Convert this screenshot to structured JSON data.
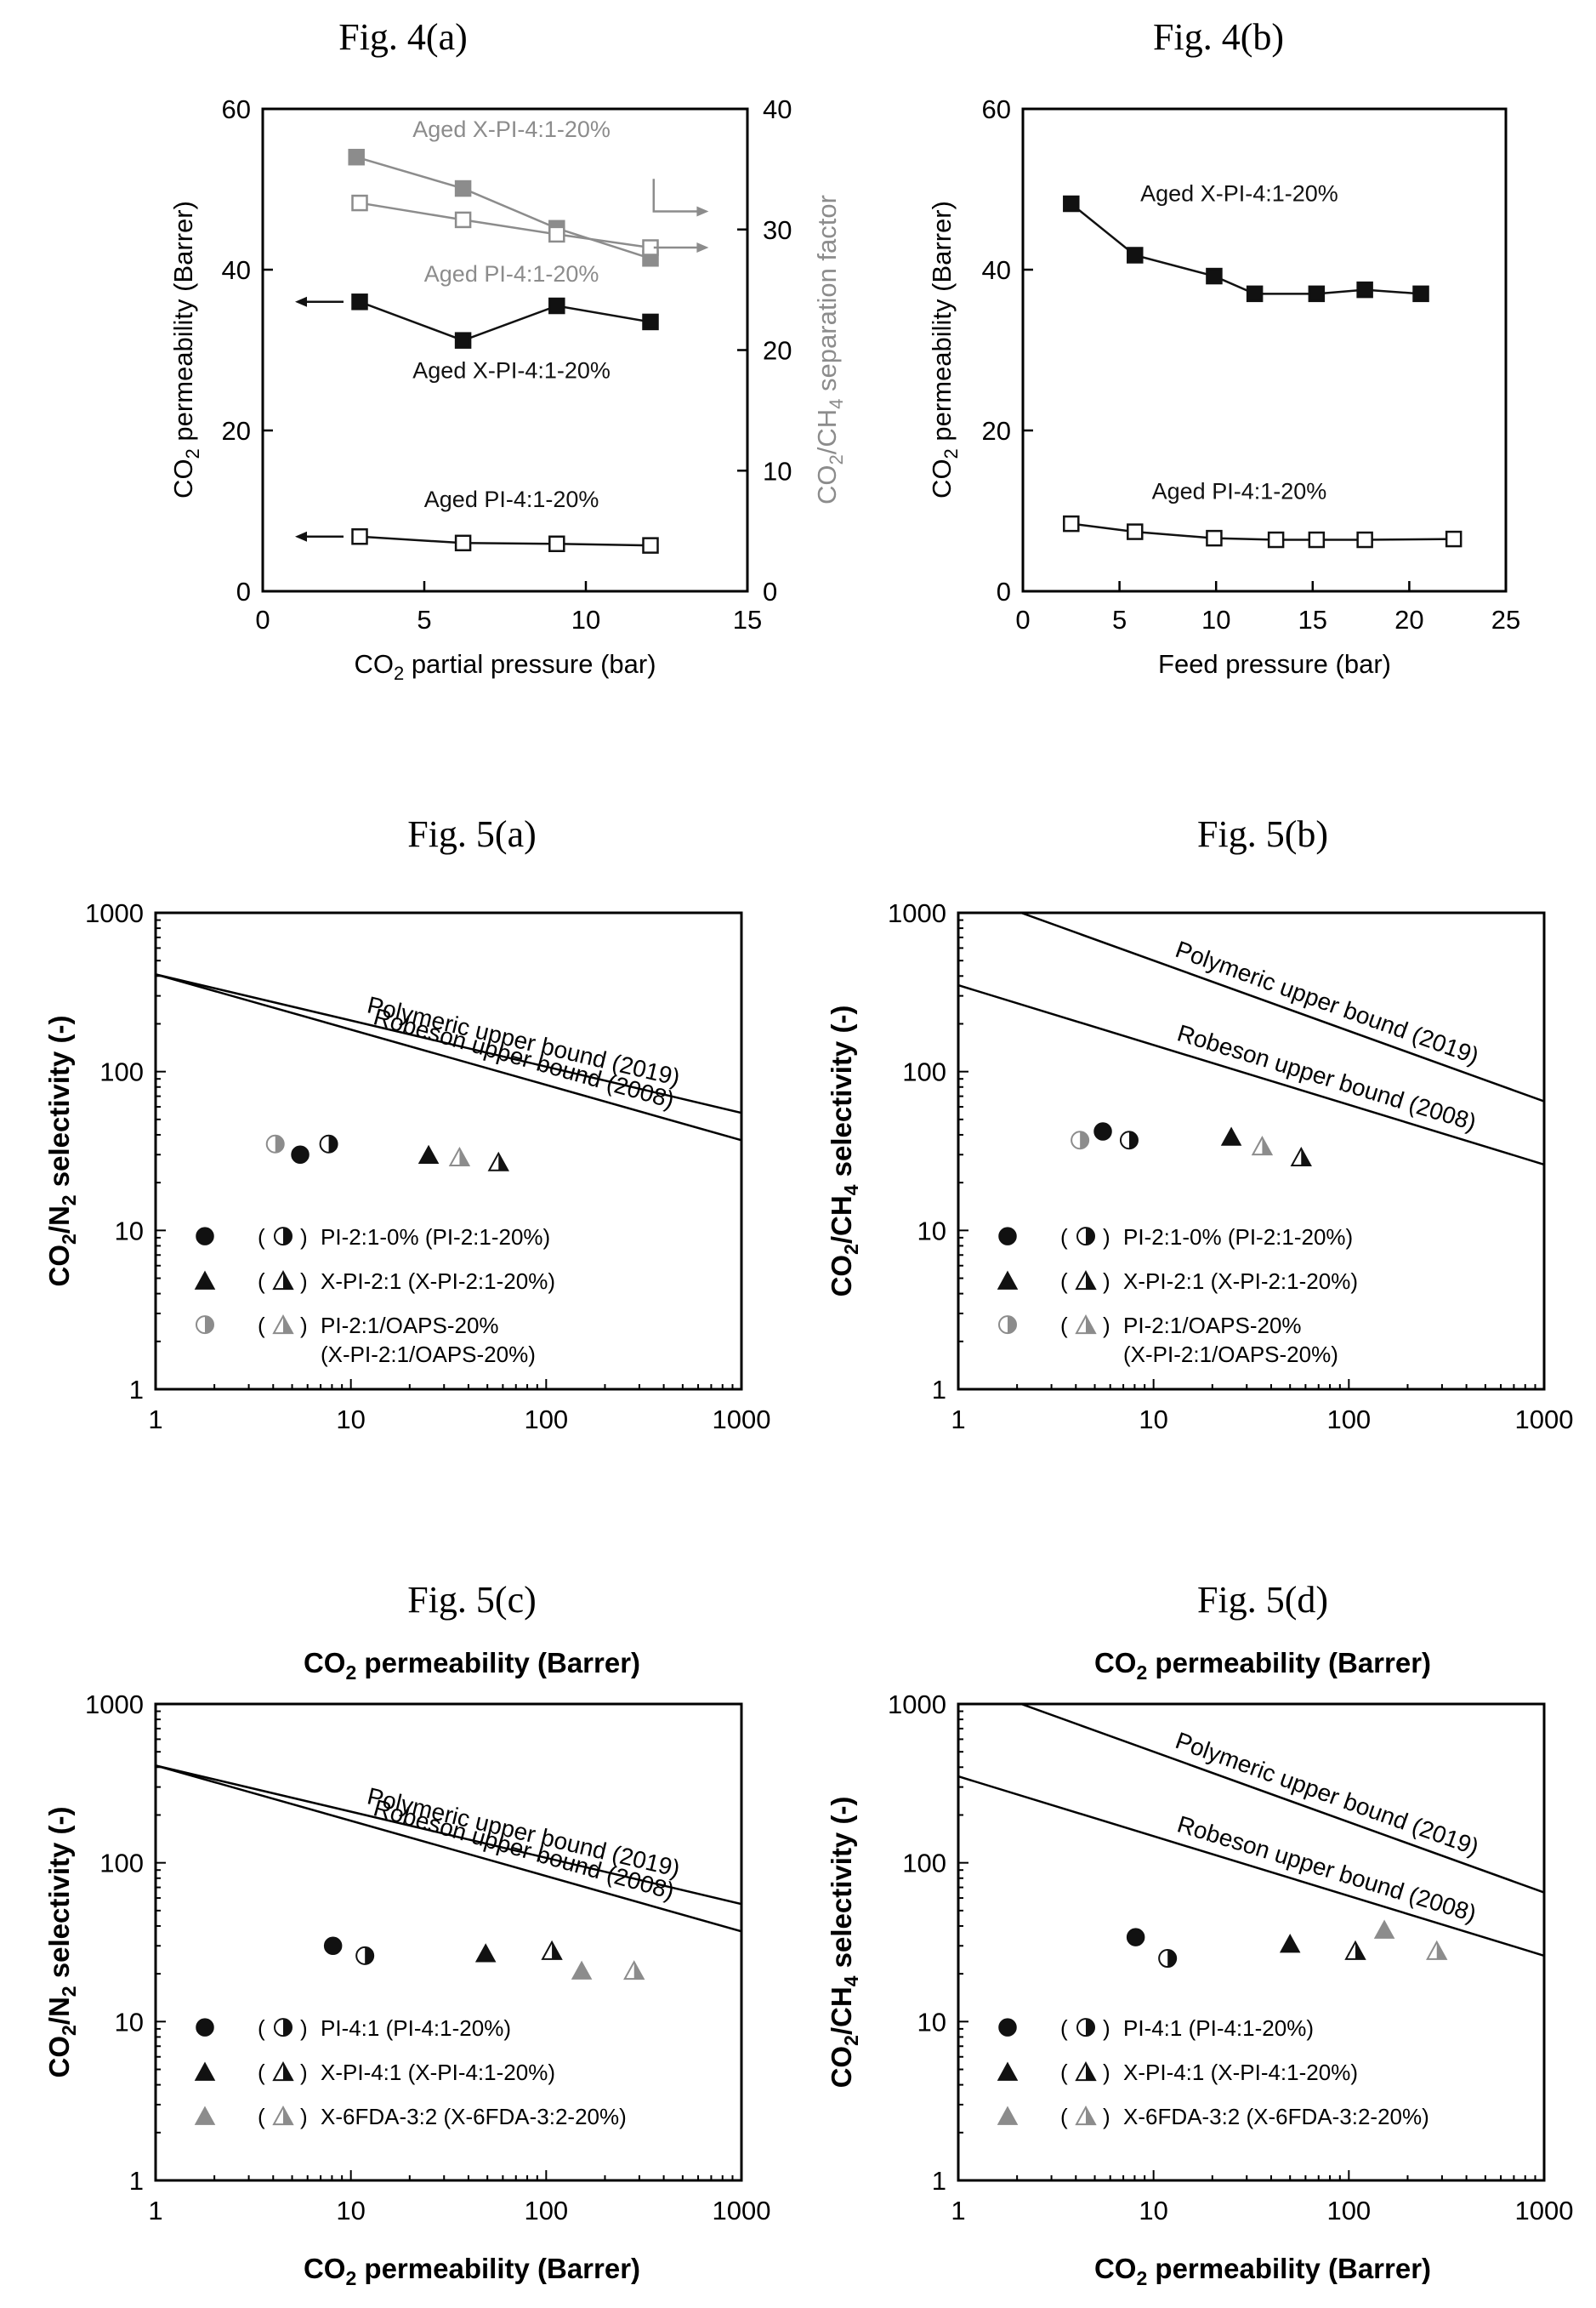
{
  "colors": {
    "black": "#111111",
    "gray": "#8c8c8c",
    "light_gray": "#c0c0c0"
  },
  "figures": [
    {
      "id": "fig4a",
      "caption": "Fig. 4(a)",
      "chart_data": {
        "type": "line",
        "xlabel": "CO2 partial pressure (bar)",
        "ylabel": "CO2 permeability (Barrer)",
        "y2label": "CO2/CH4 separation factor",
        "xlim": [
          0,
          15
        ],
        "ylim": [
          0,
          60
        ],
        "y2lim": [
          0,
          40
        ],
        "xticks": [
          0,
          5,
          10,
          15
        ],
        "yticks": [
          0,
          20,
          40,
          60
        ],
        "y2ticks": [
          0,
          10,
          20,
          30,
          40
        ],
        "series": [
          {
            "name": "Aged X-PI-4:1-20%",
            "axis": "left",
            "marker": "square-filled",
            "color": "black",
            "x": [
              3.0,
              6.2,
              9.1,
              12.0
            ],
            "y": [
              36.0,
              31.2,
              35.5,
              33.5
            ],
            "label_pos": [
              7.7,
              26.5
            ]
          },
          {
            "name": "Aged PI-4:1-20%",
            "axis": "left",
            "marker": "square-open",
            "color": "black",
            "x": [
              3.0,
              6.2,
              9.1,
              12.0
            ],
            "y": [
              6.8,
              6.0,
              5.9,
              5.7
            ],
            "label_pos": [
              7.7,
              10.5
            ]
          },
          {
            "name": "Aged X-PI-4:1-20%",
            "axis": "right",
            "marker": "square-filled",
            "color": "gray",
            "x": [
              2.9,
              6.2,
              9.1,
              12.0
            ],
            "y": [
              36.0,
              33.4,
              30.1,
              27.6
            ],
            "label_pos": [
              7.7,
              56.5
            ]
          },
          {
            "name": "Aged PI-4:1-20%",
            "axis": "right",
            "marker": "square-open",
            "color": "gray",
            "x": [
              3.0,
              6.2,
              9.1,
              12.0
            ],
            "y": [
              32.2,
              30.8,
              29.6,
              28.5
            ],
            "label_pos": [
              7.7,
              38.5
            ]
          }
        ]
      }
    },
    {
      "id": "fig4b",
      "caption": "Fig. 4(b)",
      "chart_data": {
        "type": "line",
        "xlabel": "Feed pressure (bar)",
        "ylabel": "CO2 permeability (Barrer)",
        "xlim": [
          0,
          25
        ],
        "ylim": [
          0,
          60
        ],
        "xticks": [
          0,
          5,
          10,
          15,
          20,
          25
        ],
        "yticks": [
          0,
          20,
          40,
          60
        ],
        "series": [
          {
            "name": "Aged X-PI-4:1-20%",
            "marker": "square-filled",
            "color": "black",
            "x": [
              2.5,
              5.8,
              9.9,
              12.0,
              15.2,
              17.7,
              20.6
            ],
            "y": [
              48.2,
              41.8,
              39.2,
              37.0,
              37.0,
              37.5,
              37.0
            ],
            "label_pos": [
              11.2,
              48.5
            ]
          },
          {
            "name": "Aged PI-4:1-20%",
            "marker": "square-open",
            "color": "black",
            "x": [
              2.5,
              5.8,
              9.9,
              13.1,
              15.2,
              17.7,
              22.3
            ],
            "y": [
              8.4,
              7.4,
              6.6,
              6.4,
              6.4,
              6.4,
              6.5
            ],
            "label_pos": [
              11.2,
              11.5
            ]
          }
        ]
      }
    },
    {
      "id": "fig5a",
      "caption": "Fig. 5(a)",
      "chart_data": {
        "type": "scatter",
        "xscale": "log",
        "yscale": "log",
        "xlabel": "",
        "ylabel": "CO2/N2 selectivity (-)",
        "xlim": [
          1,
          1000
        ],
        "ylim": [
          1,
          1000
        ],
        "xticks": [
          1,
          10,
          100,
          1000
        ],
        "yticks": [
          1,
          10,
          100,
          1000
        ],
        "bounds": [
          {
            "name": "Polymeric upper bound (2019)",
            "x": [
              1,
              1000
            ],
            "y": [
              410,
              55
            ]
          },
          {
            "name": "Robeson upper bound (2008)",
            "x": [
              1,
              1000
            ],
            "y": [
              410,
              37
            ]
          }
        ],
        "series": [
          {
            "name": "PI-2:1-0%",
            "marker": "circle",
            "fill": "full",
            "color": "black",
            "x": [
              5.5
            ],
            "y": [
              30
            ]
          },
          {
            "name": "PI-2:1-20%",
            "marker": "circle",
            "fill": "half",
            "color": "black",
            "x": [
              7.7
            ],
            "y": [
              35
            ]
          },
          {
            "name": "X-PI-2:1",
            "marker": "triangle",
            "fill": "full",
            "color": "black",
            "x": [
              25
            ],
            "y": [
              30
            ]
          },
          {
            "name": "X-PI-2:1-20%",
            "marker": "triangle",
            "fill": "half",
            "color": "black",
            "x": [
              57
            ],
            "y": [
              27
            ]
          },
          {
            "name": "PI-2:1/OAPS-20%",
            "marker": "circle",
            "fill": "half",
            "color": "gray",
            "x": [
              4.1
            ],
            "y": [
              35
            ]
          },
          {
            "name": "X-PI-2:1/OAPS-20%",
            "marker": "triangle",
            "fill": "half",
            "color": "gray",
            "x": [
              36
            ],
            "y": [
              29
            ]
          }
        ],
        "legend": [
          {
            "text": "PI-2:1-0% (PI-2:1-20%)",
            "marker": "circle",
            "color": "black"
          },
          {
            "text": "X-PI-2:1 (X-PI-2:1-20%)",
            "marker": "triangle",
            "color": "black"
          },
          {
            "text": "PI-2:1/OAPS-20%",
            "text2": "(X-PI-2:1/OAPS-20%)",
            "marker": "circle",
            "color": "gray",
            "alt_marker": "triangle"
          }
        ]
      }
    },
    {
      "id": "fig5b",
      "caption": "Fig. 5(b)",
      "chart_data": {
        "type": "scatter",
        "xscale": "log",
        "yscale": "log",
        "xlabel": "",
        "ylabel": "CO2/CH4 selectivity (-)",
        "xlim": [
          1,
          1000
        ],
        "ylim": [
          1,
          1000
        ],
        "xticks": [
          1,
          10,
          100,
          1000
        ],
        "yticks": [
          1,
          10,
          100,
          1000
        ],
        "bounds": [
          {
            "name": "Polymeric upper bound (2019)",
            "x": [
              2.1,
              1000
            ],
            "y": [
              1000,
              65
            ]
          },
          {
            "name": "Robeson upper bound (2008)",
            "x": [
              1,
              1000
            ],
            "y": [
              350,
              26
            ]
          }
        ],
        "series": [
          {
            "name": "PI-2:1-0%",
            "marker": "circle",
            "fill": "full",
            "color": "black",
            "x": [
              5.5
            ],
            "y": [
              42
            ]
          },
          {
            "name": "PI-2:1-20%",
            "marker": "circle",
            "fill": "half",
            "color": "black",
            "x": [
              7.5
            ],
            "y": [
              37
            ]
          },
          {
            "name": "X-PI-2:1",
            "marker": "triangle",
            "fill": "full",
            "color": "black",
            "x": [
              25
            ],
            "y": [
              39
            ]
          },
          {
            "name": "X-PI-2:1-20%",
            "marker": "triangle",
            "fill": "half",
            "color": "black",
            "x": [
              57
            ],
            "y": [
              29
            ]
          },
          {
            "name": "PI-2:1/OAPS-20%",
            "marker": "circle",
            "fill": "half",
            "color": "gray",
            "x": [
              4.2
            ],
            "y": [
              37
            ]
          },
          {
            "name": "X-PI-2:1/OAPS-20%",
            "marker": "triangle",
            "fill": "half",
            "color": "gray",
            "x": [
              36
            ],
            "y": [
              34
            ]
          }
        ],
        "legend": [
          {
            "text": "PI-2:1-0% (PI-2:1-20%)",
            "marker": "circle",
            "color": "black"
          },
          {
            "text": "X-PI-2:1 (X-PI-2:1-20%)",
            "marker": "triangle",
            "color": "black"
          },
          {
            "text": "PI-2:1/OAPS-20%",
            "text2": "(X-PI-2:1/OAPS-20%)",
            "marker": "circle",
            "color": "gray",
            "alt_marker": "triangle"
          }
        ]
      }
    },
    {
      "id": "fig5c",
      "caption": "Fig. 5(c)",
      "top_label": "CO2 permeability (Barrer)",
      "chart_data": {
        "type": "scatter",
        "xscale": "log",
        "yscale": "log",
        "xlabel": "CO2 permeability (Barrer)",
        "ylabel": "CO2/N2 selectivity (-)",
        "xlim": [
          1,
          1000
        ],
        "ylim": [
          1,
          1000
        ],
        "xticks": [
          1,
          10,
          100,
          1000
        ],
        "yticks": [
          1,
          10,
          100,
          1000
        ],
        "bounds": [
          {
            "name": "Polymeric upper bound (2019)",
            "x": [
              1,
              1000
            ],
            "y": [
              410,
              55
            ]
          },
          {
            "name": "Robeson upper bound (2008)",
            "x": [
              1,
              1000
            ],
            "y": [
              410,
              37
            ]
          }
        ],
        "series": [
          {
            "name": "PI-4:1",
            "marker": "circle",
            "fill": "full",
            "color": "black",
            "x": [
              8.1
            ],
            "y": [
              30
            ]
          },
          {
            "name": "PI-4:1-20%",
            "marker": "circle",
            "fill": "half",
            "color": "black",
            "x": [
              11.8
            ],
            "y": [
              26
            ]
          },
          {
            "name": "X-PI-4:1",
            "marker": "triangle",
            "fill": "full",
            "color": "black",
            "x": [
              49
            ],
            "y": [
              27
            ]
          },
          {
            "name": "X-PI-4:1-20%",
            "marker": "triangle",
            "fill": "half",
            "color": "black",
            "x": [
              107
            ],
            "y": [
              28
            ]
          },
          {
            "name": "X-6FDA-3:2",
            "marker": "triangle",
            "fill": "full",
            "color": "gray",
            "x": [
              152
            ],
            "y": [
              21
            ]
          },
          {
            "name": "X-6FDA-3:2-20%",
            "marker": "triangle",
            "fill": "half",
            "color": "gray",
            "x": [
              282
            ],
            "y": [
              21
            ]
          }
        ],
        "legend": [
          {
            "text": "PI-4:1 (PI-4:1-20%)",
            "marker": "circle",
            "color": "black"
          },
          {
            "text": "X-PI-4:1 (X-PI-4:1-20%)",
            "marker": "triangle",
            "color": "black"
          },
          {
            "text": "X-6FDA-3:2 (X-6FDA-3:2-20%)",
            "marker": "triangle",
            "color": "gray"
          }
        ]
      }
    },
    {
      "id": "fig5d",
      "caption": "Fig. 5(d)",
      "top_label": "CO2 permeability (Barrer)",
      "chart_data": {
        "type": "scatter",
        "xscale": "log",
        "yscale": "log",
        "xlabel": "CO2 permeability (Barrer)",
        "ylabel": "CO2/CH4 selectivity (-)",
        "xlim": [
          1,
          1000
        ],
        "ylim": [
          1,
          1000
        ],
        "xticks": [
          1,
          10,
          100,
          1000
        ],
        "yticks": [
          1,
          10,
          100,
          1000
        ],
        "bounds": [
          {
            "name": "Polymeric upper bound (2019)",
            "x": [
              2.1,
              1000
            ],
            "y": [
              1000,
              65
            ]
          },
          {
            "name": "Robeson upper bound (2008)",
            "x": [
              1,
              1000
            ],
            "y": [
              350,
              26
            ]
          }
        ],
        "series": [
          {
            "name": "PI-4:1",
            "marker": "circle",
            "fill": "full",
            "color": "black",
            "x": [
              8.1
            ],
            "y": [
              34
            ]
          },
          {
            "name": "PI-4:1-20%",
            "marker": "circle",
            "fill": "half",
            "color": "black",
            "x": [
              11.8
            ],
            "y": [
              25
            ]
          },
          {
            "name": "X-PI-4:1",
            "marker": "triangle",
            "fill": "full",
            "color": "black",
            "x": [
              50
            ],
            "y": [
              31
            ]
          },
          {
            "name": "X-PI-4:1-20%",
            "marker": "triangle",
            "fill": "half",
            "color": "black",
            "x": [
              108
            ],
            "y": [
              28
            ]
          },
          {
            "name": "X-6FDA-3:2",
            "marker": "triangle",
            "fill": "full",
            "color": "gray",
            "x": [
              152
            ],
            "y": [
              38
            ]
          },
          {
            "name": "X-6FDA-3:2-20%",
            "marker": "triangle",
            "fill": "half",
            "color": "gray",
            "x": [
              282
            ],
            "y": [
              28
            ]
          }
        ],
        "legend": [
          {
            "text": "PI-4:1 (PI-4:1-20%)",
            "marker": "circle",
            "color": "black"
          },
          {
            "text": "X-PI-4:1 (X-PI-4:1-20%)",
            "marker": "triangle",
            "color": "black"
          },
          {
            "text": "X-6FDA-3:2 (X-6FDA-3:2-20%)",
            "marker": "triangle",
            "color": "gray"
          }
        ]
      }
    }
  ]
}
